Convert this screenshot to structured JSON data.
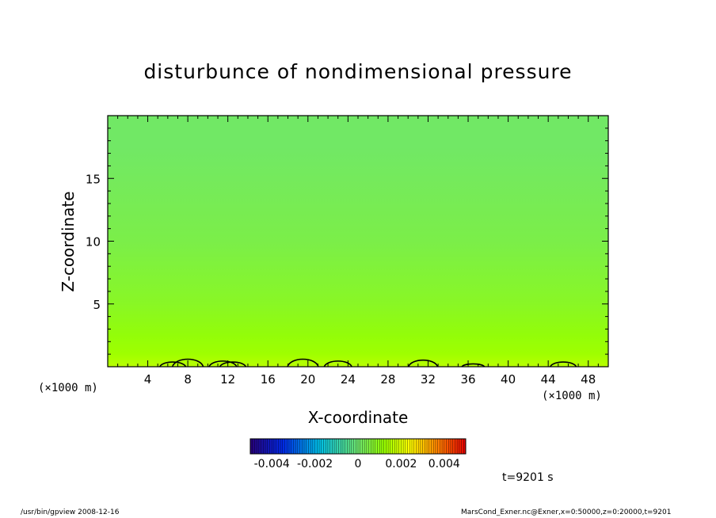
{
  "chart_data": {
    "type": "heatmap",
    "title": "disturbunce of nondimensional pressure",
    "xlabel": "X-coordinate",
    "ylabel": "Z-coordinate",
    "x_unit": "(×1000 m)",
    "xlim": [
      0,
      50
    ],
    "ylim": [
      0,
      20
    ],
    "x_ticks": [
      4,
      8,
      12,
      16,
      20,
      24,
      28,
      32,
      36,
      40,
      44,
      48
    ],
    "y_ticks": [
      5,
      10,
      15
    ],
    "z_profile": [
      {
        "z": 0.0,
        "value": 0.0016
      },
      {
        "z": 1.0,
        "value": 0.0013
      },
      {
        "z": 2.5,
        "value": 0.0011
      },
      {
        "z": 5.0,
        "value": 0.0008
      },
      {
        "z": 7.5,
        "value": 0.0006
      },
      {
        "z": 10.0,
        "value": 0.0004
      },
      {
        "z": 12.5,
        "value": 0.0003
      },
      {
        "z": 15.0,
        "value": 0.0002
      },
      {
        "z": 17.5,
        "value": 0.0001
      },
      {
        "z": 20.0,
        "value": 0.0001
      }
    ],
    "contour_bumps": [
      {
        "x": 6.5,
        "height": 0.5
      },
      {
        "x": 8.0,
        "height": 0.8
      },
      {
        "x": 11.5,
        "height": 0.6
      },
      {
        "x": 12.5,
        "height": 0.5
      },
      {
        "x": 19.5,
        "height": 0.8
      },
      {
        "x": 23.0,
        "height": 0.6
      },
      {
        "x": 31.5,
        "height": 0.7
      },
      {
        "x": 36.5,
        "height": 0.3
      },
      {
        "x": 45.5,
        "height": 0.5
      }
    ],
    "colorbar": {
      "min": -0.005,
      "max": 0.005,
      "tick_values": [
        -0.004,
        -0.002,
        0,
        0.002,
        0.004
      ],
      "tick_labels": [
        "-0.004",
        "-0.002",
        "0",
        "0.002",
        "0.004"
      ]
    }
  },
  "time_label": "t=9201 s",
  "footer_left": "/usr/bin/gpview   2008-12-16",
  "footer_right": "MarsCond_Exner.nc@Exner,x=0:50000,z=0:20000,t=9201",
  "colors": {
    "background": "#ffffff",
    "contour": "#000000",
    "frame": "#000000"
  }
}
